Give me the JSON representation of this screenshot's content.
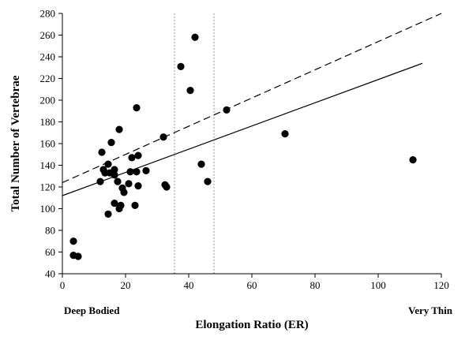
{
  "chart_data": {
    "type": "scatter",
    "xlabel": "Elongation Ratio (ER)",
    "ylabel": "Total Number of Vertebrae",
    "xlim": [
      0,
      120
    ],
    "ylim": [
      40,
      280
    ],
    "xticks": [
      0,
      20,
      40,
      60,
      80,
      100,
      120
    ],
    "yticks": [
      40,
      60,
      80,
      100,
      120,
      140,
      160,
      180,
      200,
      220,
      240,
      260,
      280
    ],
    "grid": false,
    "annotations": {
      "left": "Deep Bodied",
      "right": "Very Thin"
    },
    "vertical_reference_lines": [
      35.5,
      48
    ],
    "fit_lines": [
      {
        "style": "solid",
        "x": [
          0,
          114
        ],
        "y": [
          112,
          234
        ]
      },
      {
        "style": "dashed",
        "x": [
          0,
          120
        ],
        "y": [
          124,
          280
        ]
      }
    ],
    "points": [
      {
        "x": 3.5,
        "y": 70
      },
      {
        "x": 3.5,
        "y": 57
      },
      {
        "x": 5,
        "y": 56
      },
      {
        "x": 12,
        "y": 125
      },
      {
        "x": 12.5,
        "y": 152
      },
      {
        "x": 13,
        "y": 136
      },
      {
        "x": 13.5,
        "y": 133
      },
      {
        "x": 14.5,
        "y": 141
      },
      {
        "x": 14.5,
        "y": 95
      },
      {
        "x": 15,
        "y": 133
      },
      {
        "x": 15.5,
        "y": 161
      },
      {
        "x": 16.5,
        "y": 136
      },
      {
        "x": 16.5,
        "y": 131
      },
      {
        "x": 16.5,
        "y": 105
      },
      {
        "x": 17.5,
        "y": 125
      },
      {
        "x": 18,
        "y": 173
      },
      {
        "x": 18,
        "y": 100
      },
      {
        "x": 18.5,
        "y": 103
      },
      {
        "x": 19,
        "y": 119
      },
      {
        "x": 19.5,
        "y": 115
      },
      {
        "x": 21,
        "y": 123
      },
      {
        "x": 21.5,
        "y": 134
      },
      {
        "x": 22,
        "y": 147
      },
      {
        "x": 23,
        "y": 103
      },
      {
        "x": 23.5,
        "y": 134
      },
      {
        "x": 23.5,
        "y": 193
      },
      {
        "x": 24,
        "y": 121
      },
      {
        "x": 24,
        "y": 149
      },
      {
        "x": 26.5,
        "y": 135
      },
      {
        "x": 32,
        "y": 166
      },
      {
        "x": 32.5,
        "y": 122
      },
      {
        "x": 33,
        "y": 120
      },
      {
        "x": 37.5,
        "y": 231
      },
      {
        "x": 40.5,
        "y": 209
      },
      {
        "x": 42,
        "y": 258
      },
      {
        "x": 44,
        "y": 141
      },
      {
        "x": 46,
        "y": 125
      },
      {
        "x": 52,
        "y": 191
      },
      {
        "x": 70.5,
        "y": 169
      },
      {
        "x": 111,
        "y": 145
      }
    ]
  }
}
